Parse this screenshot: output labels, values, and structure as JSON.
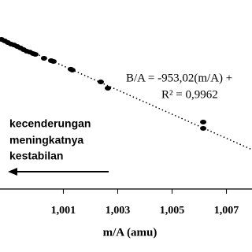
{
  "chart_data": {
    "type": "scatter",
    "xlabel": "m/A (amu)",
    "equation": "B/A = -953,02(m/A) +",
    "r_squared": "R² = 0,9962",
    "annotation": [
      "kecenderungan",
      "meningkatnya",
      "kestabilan"
    ],
    "color": "#000000",
    "xlim": [
      0.99867,
      1.00794
    ],
    "ylim": [
      -2.51,
      12.42
    ],
    "xticks": [
      {
        "value": 1.001,
        "label": "1,001"
      },
      {
        "value": 1.003,
        "label": "1,003"
      },
      {
        "value": 1.005,
        "label": "1,005"
      },
      {
        "value": 1.007,
        "label": "1,007"
      }
    ],
    "x": [
      0.998725,
      0.998841,
      0.998957,
      0.999072,
      0.999188,
      0.999304,
      0.99942,
      0.999536,
      0.999652,
      0.999768,
      0.999884,
      0.999971,
      1.00029,
      1.000551,
      1.000638,
      1.001275,
      1.001333,
      1.002377,
      1.002638,
      1.006145,
      1.006145
    ],
    "values": [
      9.31,
      9.19,
      9.06,
      8.94,
      8.87,
      8.75,
      8.63,
      8.5,
      8.38,
      8.31,
      8.19,
      8.13,
      7.82,
      7.63,
      7.57,
      6.95,
      6.88,
      5.95,
      5.45,
      2.78,
      2.28
    ],
    "trendline": {
      "x": [
        0.99867,
        1.00794
      ],
      "y": [
        9.43,
        0.6
      ]
    }
  }
}
